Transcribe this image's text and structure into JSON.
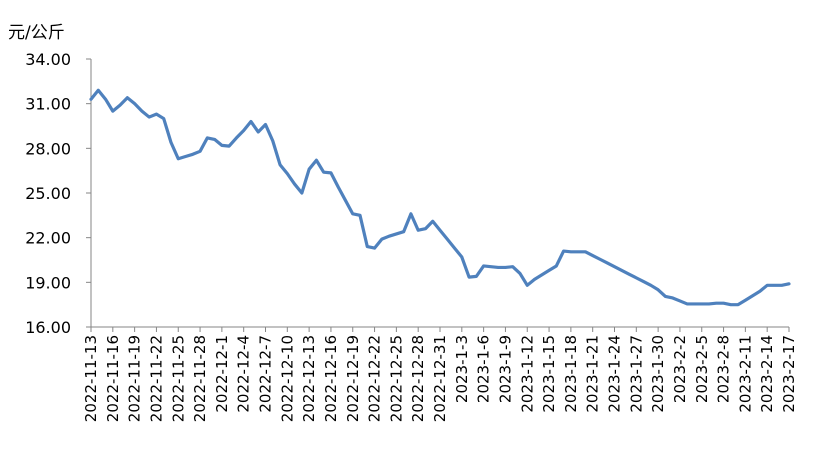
{
  "chart_data": {
    "type": "line",
    "ylabel": "元/公斤",
    "ylim": [
      16.0,
      34.0
    ],
    "yticks": [
      "34.00",
      "31.00",
      "28.00",
      "25.00",
      "22.00",
      "19.00",
      "16.00"
    ],
    "grid": false,
    "legend": "none",
    "x": [
      "2022-11-13",
      "2022-11-14",
      "2022-11-15",
      "2022-11-16",
      "2022-11-17",
      "2022-11-18",
      "2022-11-19",
      "2022-11-20",
      "2022-11-21",
      "2022-11-22",
      "2022-11-23",
      "2022-11-24",
      "2022-11-25",
      "2022-11-26",
      "2022-11-27",
      "2022-11-28",
      "2022-11-29",
      "2022-11-30",
      "2022-12-1",
      "2022-12-2",
      "2022-12-3",
      "2022-12-4",
      "2022-12-5",
      "2022-12-6",
      "2022-12-7",
      "2022-12-8",
      "2022-12-9",
      "2022-12-10",
      "2022-12-11",
      "2022-12-12",
      "2022-12-13",
      "2022-12-14",
      "2022-12-15",
      "2022-12-16",
      "2022-12-17",
      "2022-12-18",
      "2022-12-19",
      "2022-12-20",
      "2022-12-21",
      "2022-12-22",
      "2022-12-23",
      "2022-12-24",
      "2022-12-25",
      "2022-12-26",
      "2022-12-27",
      "2022-12-28",
      "2022-12-29",
      "2022-12-30",
      "2022-12-31",
      "2023-1-1",
      "2023-1-2",
      "2023-1-3",
      "2023-1-4",
      "2023-1-5",
      "2023-1-6",
      "2023-1-7",
      "2023-1-8",
      "2023-1-9",
      "2023-1-10",
      "2023-1-11",
      "2023-1-12",
      "2023-1-13",
      "2023-1-14",
      "2023-1-15",
      "2023-1-16",
      "2023-1-17",
      "2023-1-18",
      "2023-1-19",
      "2023-1-20",
      "2023-1-21",
      "2023-1-22",
      "2023-1-23",
      "2023-1-24",
      "2023-1-25",
      "2023-1-26",
      "2023-1-27",
      "2023-1-28",
      "2023-1-29",
      "2023-1-30",
      "2023-1-31",
      "2023-2-1",
      "2023-2-2",
      "2023-2-3",
      "2023-2-4",
      "2023-2-5",
      "2023-2-6",
      "2023-2-7",
      "2023-2-8",
      "2023-2-9",
      "2023-2-10",
      "2023-2-11",
      "2023-2-12",
      "2023-2-13",
      "2023-2-14",
      "2023-2-15",
      "2023-2-16",
      "2023-2-17"
    ],
    "xtick_labels": [
      "2022-11-13",
      "2022-11-16",
      "2022-11-19",
      "2022-11-22",
      "2022-11-25",
      "2022-11-28",
      "2022-12-1",
      "2022-12-4",
      "2022-12-7",
      "2022-12-10",
      "2022-12-13",
      "2022-12-16",
      "2022-12-19",
      "2022-12-22",
      "2022-12-25",
      "2022-12-28",
      "2022-12-31",
      "2023-1-3",
      "2023-1-6",
      "2023-1-9",
      "2023-1-12",
      "2023-1-15",
      "2023-1-18",
      "2023-1-21",
      "2023-1-24",
      "2023-1-27",
      "2023-1-30",
      "2023-2-2",
      "2023-2-5",
      "2023-2-8",
      "2023-2-11",
      "2023-2-14",
      "2023-2-17"
    ],
    "series": [
      {
        "color": "#4F81BD",
        "values": [
          31.3,
          31.9,
          31.3,
          30.5,
          30.9,
          31.4,
          31.0,
          30.5,
          30.1,
          30.3,
          30.0,
          28.4,
          27.3,
          27.45,
          27.6,
          27.8,
          28.7,
          28.6,
          28.2,
          28.15,
          28.7,
          29.2,
          29.8,
          29.1,
          29.6,
          28.5,
          26.9,
          26.3,
          25.6,
          25.0,
          26.6,
          27.2,
          26.4,
          26.35,
          25.4,
          24.5,
          23.6,
          23.5,
          21.4,
          21.3,
          21.9,
          22.1,
          22.25,
          22.4,
          23.6,
          22.5,
          22.6,
          23.1,
          22.5,
          21.9,
          21.3,
          20.7,
          19.35,
          19.4,
          20.1,
          20.05,
          20.0,
          20.0,
          20.05,
          19.6,
          18.8,
          19.2,
          19.5,
          19.8,
          20.1,
          21.1,
          21.05,
          21.05,
          21.05,
          20.8,
          20.55,
          20.3,
          20.05,
          19.8,
          19.55,
          19.3,
          19.05,
          18.8,
          18.5,
          18.05,
          17.95,
          17.75,
          17.55,
          17.55,
          17.55,
          17.55,
          17.6,
          17.6,
          17.5,
          17.5,
          17.8,
          18.1,
          18.4,
          18.8,
          18.8,
          18.8,
          18.9
        ]
      }
    ]
  }
}
